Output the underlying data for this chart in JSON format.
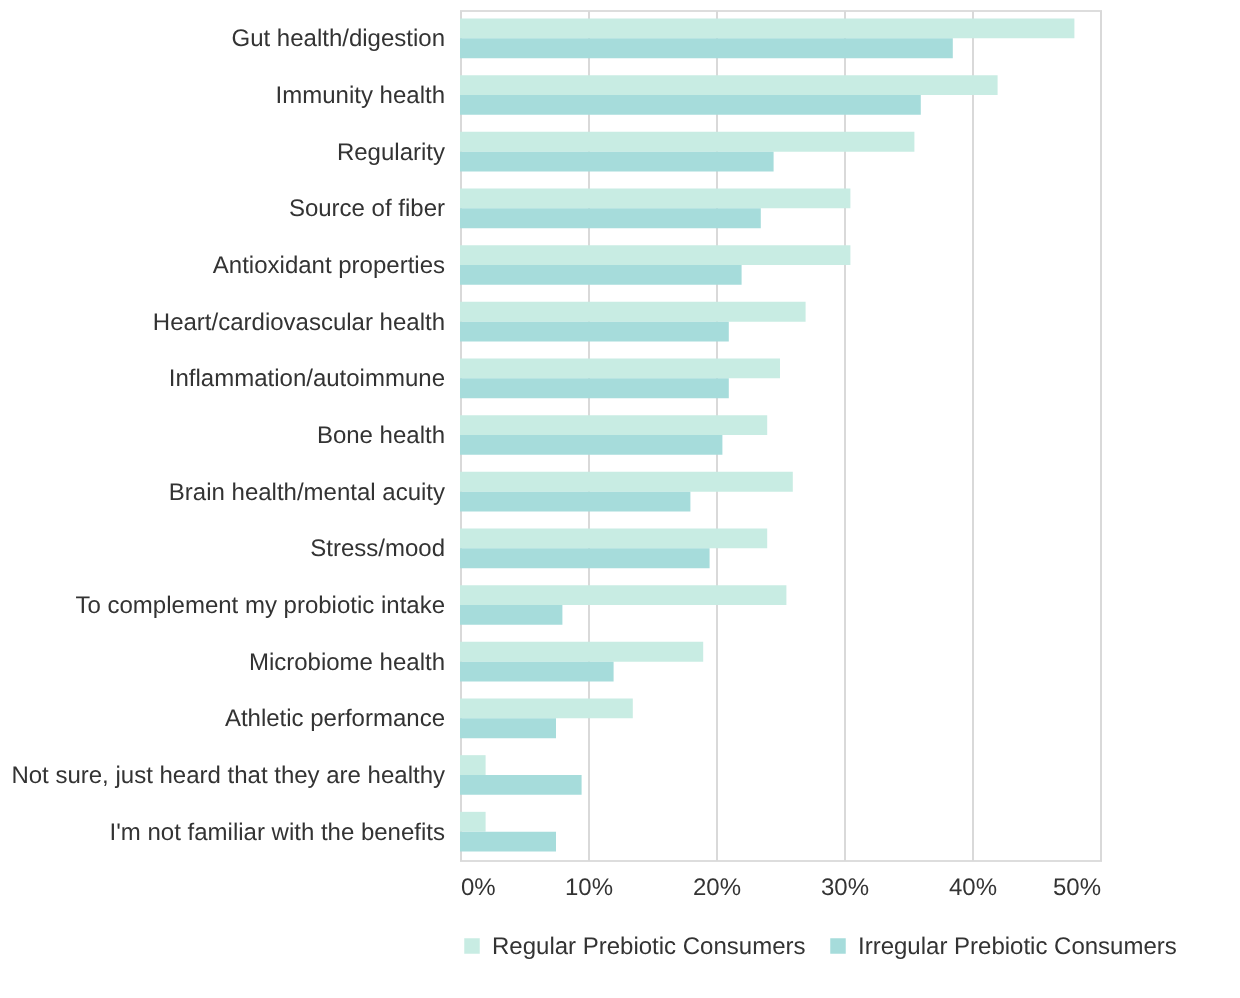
{
  "chart_data": {
    "type": "bar",
    "orientation": "horizontal",
    "categories": [
      "Gut health/digestion",
      "Immunity health",
      "Regularity",
      "Source of fiber",
      "Antioxidant properties",
      "Heart/cardiovascular health",
      "Inflammation/autoimmune",
      "Bone health",
      "Brain health/mental acuity",
      "Stress/mood",
      "To complement my probiotic intake",
      "Microbiome health",
      "Athletic performance",
      "Not sure, just heard that they are healthy",
      "I'm not familiar with the benefits"
    ],
    "series": [
      {
        "name": "Regular Prebiotic Consumers",
        "color": "#c8ece3",
        "values": [
          48,
          42,
          35.5,
          30.5,
          30.5,
          27,
          25,
          24,
          26,
          24,
          25.5,
          19,
          13.5,
          2,
          2
        ]
      },
      {
        "name": "Irregular Prebiotic Consumers",
        "color": "#a6dcdb",
        "values": [
          38.5,
          36,
          24.5,
          23.5,
          22,
          21,
          21,
          20.5,
          18,
          19.5,
          8,
          12,
          7.5,
          9.5,
          7.5
        ]
      }
    ],
    "xlim": [
      0,
      50
    ],
    "xticks": [
      {
        "value": 0,
        "label": "0%"
      },
      {
        "value": 10,
        "label": "10%"
      },
      {
        "value": 20,
        "label": "20%"
      },
      {
        "value": 30,
        "label": "30%"
      },
      {
        "value": 40,
        "label": "40%"
      },
      {
        "value": 50,
        "label": "50%"
      }
    ],
    "grid": "x",
    "legend": "bottom"
  }
}
